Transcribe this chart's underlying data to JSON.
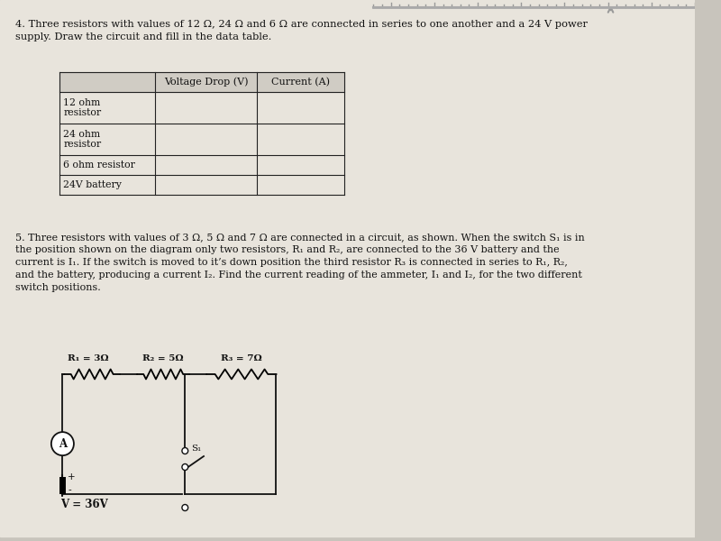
{
  "bg_color": "#c8c4bc",
  "page_color": "#e8e4dc",
  "title_text_line1": "4. Three resistors with values of 12 Ω, 24 Ω and 6 Ω are connected in series to one another and a 24 V power",
  "title_text_line2": "supply. Draw the circuit and fill in the data table.",
  "table_rows": [
    "12 ohm\nresistor",
    "24 ohm\nresistor",
    "6 ohm resistor",
    "24V battery"
  ],
  "problem5_text": "5. Three resistors with values of 3 Ω, 5 Ω and 7 Ω are connected in a circuit, as shown. When the switch S₁ is in\nthe position shown on the diagram only two resistors, R₁ and R₂, are connected to the 36 V battery and the\ncurrent is I₁. If the switch is moved to it’s down position the third resistor R₃ is connected in series to R₁, R₂,\nand the battery, producing a current I₂. Find the current reading of the ammeter, I₁ and I₂, for the two different\nswitch positions.",
  "r1_label": "R₁ = 3Ω",
  "r2_label": "R₂ = 5Ω",
  "r3_label": "R₃ = 7Ω",
  "v_label": "V = 36V",
  "s1_label": "S₁",
  "text_color": "#111111",
  "line_color": "#111111",
  "table_line_color": "#222222",
  "ruler_color": "#999999"
}
